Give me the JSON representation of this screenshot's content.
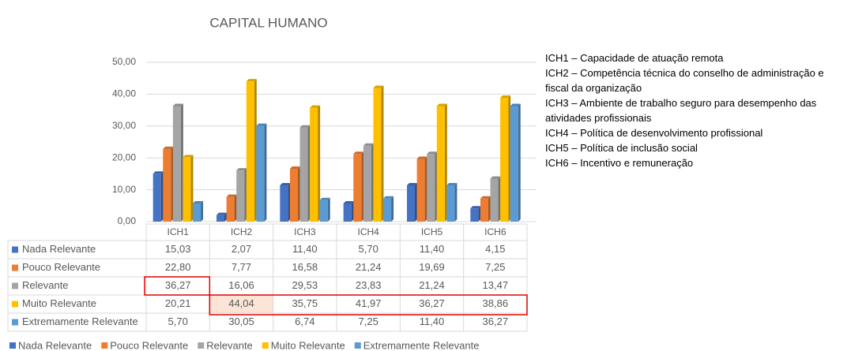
{
  "chart_data": {
    "type": "bar3d",
    "title": "CAPITAL HUMANO",
    "categories": [
      "ICH1",
      "ICH2",
      "ICH3",
      "ICH4",
      "ICH5",
      "ICH6"
    ],
    "series": [
      {
        "name": "Nada Relevante",
        "color": "#4472c4",
        "values": [
          15.03,
          2.07,
          11.4,
          5.7,
          11.4,
          4.15
        ],
        "value_labels": [
          "15,03",
          "2,07",
          "11,40",
          "5,70",
          "11,40",
          "4,15"
        ]
      },
      {
        "name": "Pouco Relevante",
        "color": "#ed7d31",
        "values": [
          22.8,
          7.77,
          16.58,
          21.24,
          19.69,
          7.25
        ],
        "value_labels": [
          "22,80",
          "7,77",
          "16,58",
          "21,24",
          "19,69",
          "7,25"
        ]
      },
      {
        "name": "Relevante",
        "color": "#a5a5a5",
        "values": [
          36.27,
          16.06,
          29.53,
          23.83,
          21.24,
          13.47
        ],
        "value_labels": [
          "36,27",
          "16,06",
          "29,53",
          "23,83",
          "21,24",
          "13,47"
        ]
      },
      {
        "name": "Muito Relevante",
        "color": "#ffc000",
        "values": [
          20.21,
          44.04,
          35.75,
          41.97,
          36.27,
          38.86
        ],
        "value_labels": [
          "20,21",
          "44,04",
          "35,75",
          "41,97",
          "36,27",
          "38,86"
        ]
      },
      {
        "name": "Extremamente Relevante",
        "color": "#5b9bd5",
        "values": [
          5.7,
          30.05,
          6.74,
          7.25,
          11.4,
          36.27
        ],
        "value_labels": [
          "5,70",
          "30,05",
          "6,74",
          "7,25",
          "11,40",
          "36,27"
        ]
      }
    ],
    "ylim": [
      0,
      50
    ],
    "yticks": [
      {
        "value": 0,
        "label": "0,00"
      },
      {
        "value": 10,
        "label": "10,00"
      },
      {
        "value": 20,
        "label": "20,00"
      },
      {
        "value": 30,
        "label": "30,00"
      },
      {
        "value": 40,
        "label": "40,00"
      },
      {
        "value": 50,
        "label": "50,00"
      }
    ],
    "grid": true,
    "descriptions": [
      "ICH1 – Capacidade de atuação remota",
      "ICH2 – Competência técnica do conselho de administração e fiscal da organização",
      "ICH3 – Ambiente de trabalho seguro para desempenho das atividades profissionais",
      "ICH4 – Política de desenvolvimento profissional",
      "ICH5 – Política de inclusão social",
      "ICH6 – Incentivo e remuneração"
    ]
  }
}
